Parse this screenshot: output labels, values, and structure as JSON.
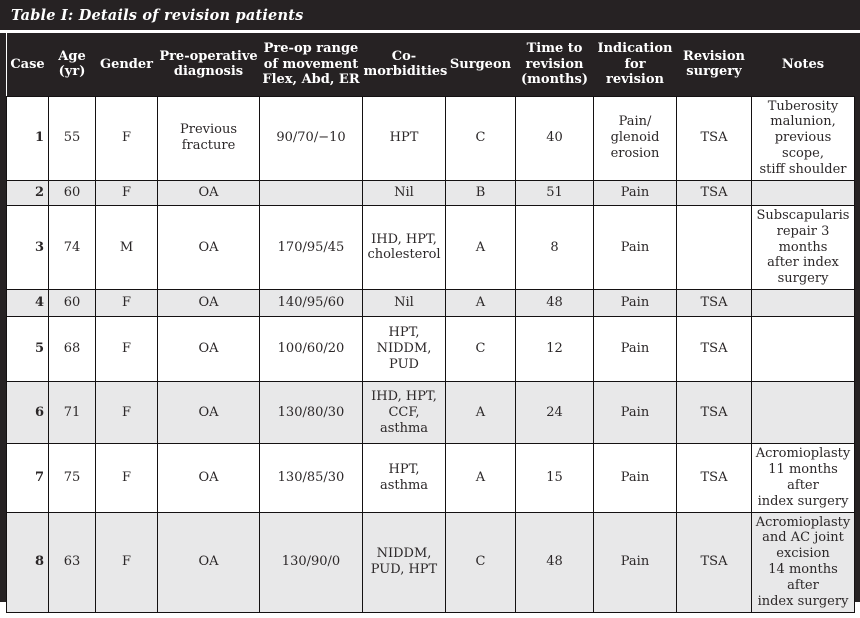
{
  "title": "Table I: Details of revision patients",
  "colors": {
    "header_bg": "#262223",
    "header_text": "#ffffff",
    "shaded_row_bg": "#e8e8e9",
    "body_text": "#2b2728",
    "grid_line": "#141112"
  },
  "column_keys": [
    "case",
    "age",
    "gender",
    "preop-diagnosis",
    "preop-range-of-movement",
    "comorbidities",
    "surgeon",
    "time-to-revision",
    "indication-for-revision",
    "revision-surgery",
    "notes"
  ],
  "headers": [
    "Case",
    "Age\n(yr)",
    "Gender",
    "Pre-operative\ndiagnosis",
    "Pre-op range\nof movement\nFlex, Abd, ER",
    "Co-\nmorbidities",
    "Surgeon",
    "Time to\nrevision\n(months)",
    "Indication\nfor\nrevision",
    "Revision\nsurgery",
    "Notes"
  ],
  "rows": [
    {
      "shaded": false,
      "cells": [
        "1",
        "55",
        "F",
        "Previous\nfracture",
        "90/70/−10",
        "HPT",
        "C",
        "40",
        "Pain/\nglenoid\nerosion",
        "TSA",
        "Tuberosity\nmalunion,\nprevious scope,\nstiff shoulder"
      ]
    },
    {
      "shaded": true,
      "cells": [
        "2",
        "60",
        "F",
        "OA",
        "",
        "Nil",
        "B",
        "51",
        "Pain",
        "TSA",
        ""
      ]
    },
    {
      "shaded": false,
      "cells": [
        "3",
        "74",
        "M",
        "OA",
        "170/95/45",
        "IHD, HPT,\ncholesterol",
        "A",
        "8",
        "Pain",
        "",
        "Subscapularis\nrepair 3 months\nafter index\nsurgery"
      ]
    },
    {
      "shaded": true,
      "cells": [
        "4",
        "60",
        "F",
        "OA",
        "140/95/60",
        "Nil",
        "A",
        "48",
        "Pain",
        "TSA",
        ""
      ]
    },
    {
      "shaded": false,
      "cells": [
        "5",
        "68",
        "F",
        "OA",
        "100/60/20",
        "HPT,\nNIDDM,\nPUD",
        "C",
        "12",
        "Pain",
        "TSA",
        ""
      ]
    },
    {
      "shaded": true,
      "cells": [
        "6",
        "71",
        "F",
        "OA",
        "130/80/30",
        "IHD, HPT,\nCCF,\nasthma",
        "A",
        "24",
        "Pain",
        "TSA",
        ""
      ]
    },
    {
      "shaded": false,
      "cells": [
        "7",
        "75",
        "F",
        "OA",
        "130/85/30",
        "HPT,\nasthma",
        "A",
        "15",
        "Pain",
        "TSA",
        "Acromioplasty\n11 months after\nindex surgery"
      ]
    },
    {
      "shaded": true,
      "cells": [
        "8",
        "63",
        "F",
        "OA",
        "130/90/0",
        "NIDDM,\nPUD, HPT",
        "C",
        "48",
        "Pain",
        "TSA",
        "Acromioplasty\nand AC joint\nexcision\n14 months after\nindex surgery"
      ]
    }
  ]
}
